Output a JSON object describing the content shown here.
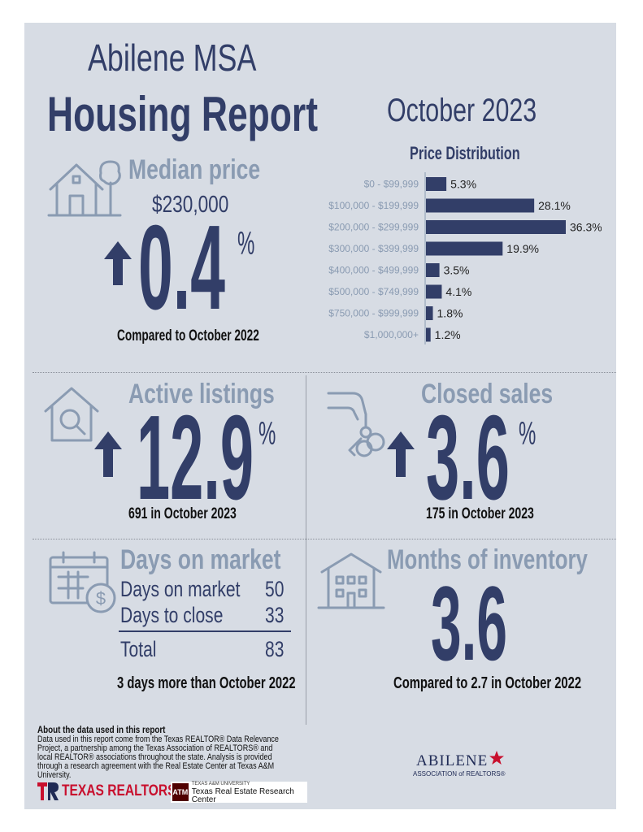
{
  "header": {
    "title_line1": "Abilene MSA",
    "title_line2": "Housing Report",
    "period": "October 2023"
  },
  "median_price": {
    "label": "Median price",
    "value": "$230,000",
    "change": "0.4",
    "unit": "%",
    "comparison": "Compared to October 2022"
  },
  "active_listings": {
    "label": "Active listings",
    "change": "12.9",
    "unit": "%",
    "detail": "691 in October 2023"
  },
  "closed_sales": {
    "label": "Closed sales",
    "change": "3.6",
    "unit": "%",
    "detail": "175 in October 2023"
  },
  "days_on_market": {
    "label": "Days on market",
    "rows": [
      {
        "label": "Days on market",
        "value": "50"
      },
      {
        "label": "Days to close",
        "value": "33"
      }
    ],
    "total_label": "Total",
    "total_value": "83",
    "comparison": "3 days more than October 2022"
  },
  "months_inventory": {
    "label": "Months of inventory",
    "value": "3.6",
    "comparison": "Compared to 2.7 in October 2022"
  },
  "about": {
    "heading": "About the data used in this report",
    "text": "Data used in this report come from the Texas REALTOR® Data Relevance Project, a partnership among the Texas Association of REALTORS® and local REALTOR® associations throughout the state. Analysis is provided through a research agreement with the Real Estate Center at Texas A&M University."
  },
  "logos": {
    "texas_realtors": "TEXAS REALTORS",
    "tamu_small": "TEXAS A&M UNIVERSITY",
    "tamu_center": "Texas Real Estate Research Center",
    "abilene_name": "ABILENE",
    "abilene_sub": "ASSOCIATION of REALTORS®"
  },
  "colors": {
    "panel": "#d7dce4",
    "navy": "#323e68",
    "steel": "#8a9bb2"
  },
  "chart_data": {
    "type": "bar",
    "orientation": "horizontal",
    "title": "Price Distribution",
    "categories": [
      "$0 - $99,999",
      "$100,000 - $199,999",
      "$200,000 - $299,999",
      "$300,000 - $399,999",
      "$400,000 - $499,999",
      "$500,000 - $749,999",
      "$750,000 - $999,999",
      "$1,000,000+"
    ],
    "values": [
      5.3,
      28.1,
      36.3,
      19.9,
      3.5,
      4.1,
      1.8,
      1.2
    ],
    "value_labels": [
      "5.3%",
      "28.1%",
      "36.3%",
      "19.9%",
      "3.5%",
      "4.1%",
      "1.8%",
      "1.2%"
    ],
    "unit": "%",
    "grid": false,
    "legend": "none"
  }
}
